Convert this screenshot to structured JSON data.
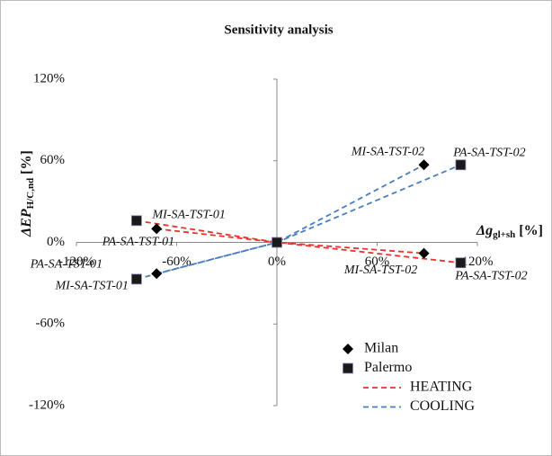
{
  "chart_data": {
    "type": "scatter",
    "title": "Sensitivity analysis",
    "x_label": {
      "main": "Δg",
      "sub": "gl+sh",
      "unit": "[%]"
    },
    "y_label": {
      "main": "ΔEP",
      "sub": "H/C,nd",
      "unit": "[%]"
    },
    "xlim": [
      -120,
      120
    ],
    "xticks": [
      {
        "value": -120,
        "label": "-120%"
      },
      {
        "value": -60,
        "label": "-60%"
      },
      {
        "value": 0,
        "label": "0%"
      },
      {
        "value": 60,
        "label": "60%"
      },
      {
        "value": 120,
        "label": "120%"
      }
    ],
    "ylim": [
      -120,
      120
    ],
    "yticks": [
      {
        "value": -120,
        "label": "-120%"
      },
      {
        "value": -60,
        "label": "-60%"
      },
      {
        "value": 0,
        "label": "0%"
      },
      {
        "value": 60,
        "label": "60%"
      },
      {
        "value": 120,
        "label": "120%"
      }
    ],
    "series": [
      {
        "name": "Milan",
        "marker": "diamond",
        "color": "#000000",
        "x": [
          -72,
          -72,
          0,
          88,
          88
        ],
        "values": [
          -23,
          10,
          0,
          57,
          -8
        ],
        "labels": [
          "MI-SA-TST-01",
          "MI-SA-TST-01",
          null,
          "MI-SA-TST-02",
          "MI-SA-TST-02"
        ]
      },
      {
        "name": "Palermo",
        "marker": "square",
        "color": "#1a1a1a",
        "x": [
          -84,
          -84,
          0,
          110,
          110
        ],
        "values": [
          -27,
          16,
          0,
          57,
          -15
        ],
        "labels": [
          "PA-SA-TST-01",
          "PA-SA-TST-01",
          null,
          "PA-SA-TST-02",
          "PA-SA-TST-02"
        ]
      },
      {
        "name": "HEATING",
        "marker": "dashed-line",
        "color": "#e8322f",
        "segments": [
          {
            "x": [
              -84,
              0,
              110
            ],
            "values": [
              16,
              0,
              -15
            ]
          },
          {
            "x": [
              -72,
              0,
              88
            ],
            "values": [
              10,
              0,
              -8
            ]
          }
        ]
      },
      {
        "name": "COOLING",
        "marker": "dashed-line",
        "color": "#4a7ec0",
        "segments": [
          {
            "x": [
              -84,
              0,
              110
            ],
            "values": [
              -27,
              0,
              57
            ]
          },
          {
            "x": [
              -72,
              0,
              88
            ],
            "values": [
              -23,
              0,
              57
            ]
          }
        ]
      }
    ]
  }
}
